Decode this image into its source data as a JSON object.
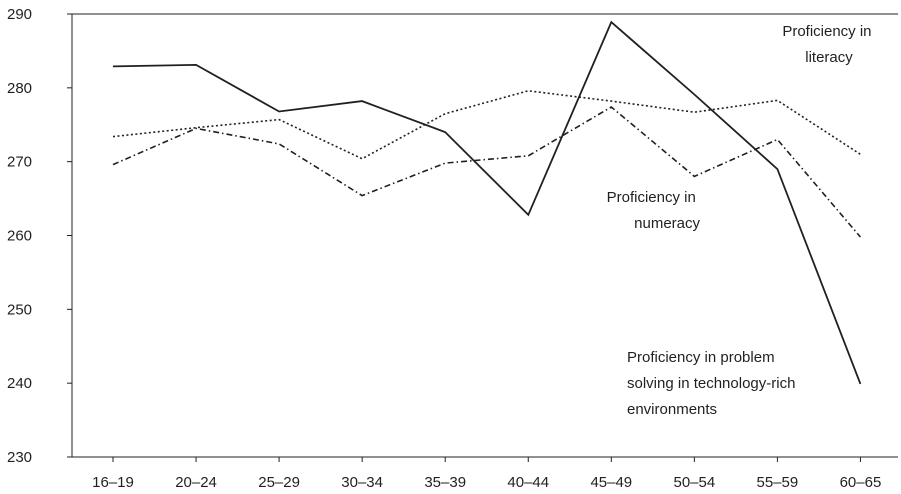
{
  "chart_data": {
    "type": "line",
    "title": "",
    "xlabel": "",
    "ylabel": "",
    "categories": [
      "16–19",
      "20–24",
      "25–29",
      "30–34",
      "35–39",
      "40–44",
      "45–49",
      "50–54",
      "55–59",
      "60–65"
    ],
    "y_ticks": [
      "230",
      "240",
      "250",
      "260",
      "270",
      "280",
      "290"
    ],
    "ylim": [
      230,
      290
    ],
    "grid": false,
    "legend": "none (direct labels)",
    "series": [
      {
        "name": "Proficiency in problem solving in technology-rich environments",
        "label_lines": [
          "Proficiency in problem",
          "solving in technology-rich",
          "environments"
        ],
        "style": "solid",
        "values": [
          282.9,
          283.1,
          276.8,
          278.2,
          274.0,
          262.8,
          288.9,
          279.1,
          269.0,
          239.9
        ]
      },
      {
        "name": "Proficiency in literacy",
        "label_lines": [
          "Proficiency in",
          "literacy"
        ],
        "style": "dotted",
        "values": [
          273.4,
          274.6,
          275.7,
          270.4,
          276.5,
          279.6,
          278.2,
          276.7,
          278.3,
          271.0
        ]
      },
      {
        "name": "Proficiency in numeracy",
        "label_lines": [
          "Proficiency in",
          "numeracy"
        ],
        "style": "dashdot",
        "values": [
          269.6,
          274.5,
          272.4,
          265.4,
          269.8,
          270.8,
          277.4,
          268.0,
          273.0,
          259.8
        ]
      }
    ]
  }
}
